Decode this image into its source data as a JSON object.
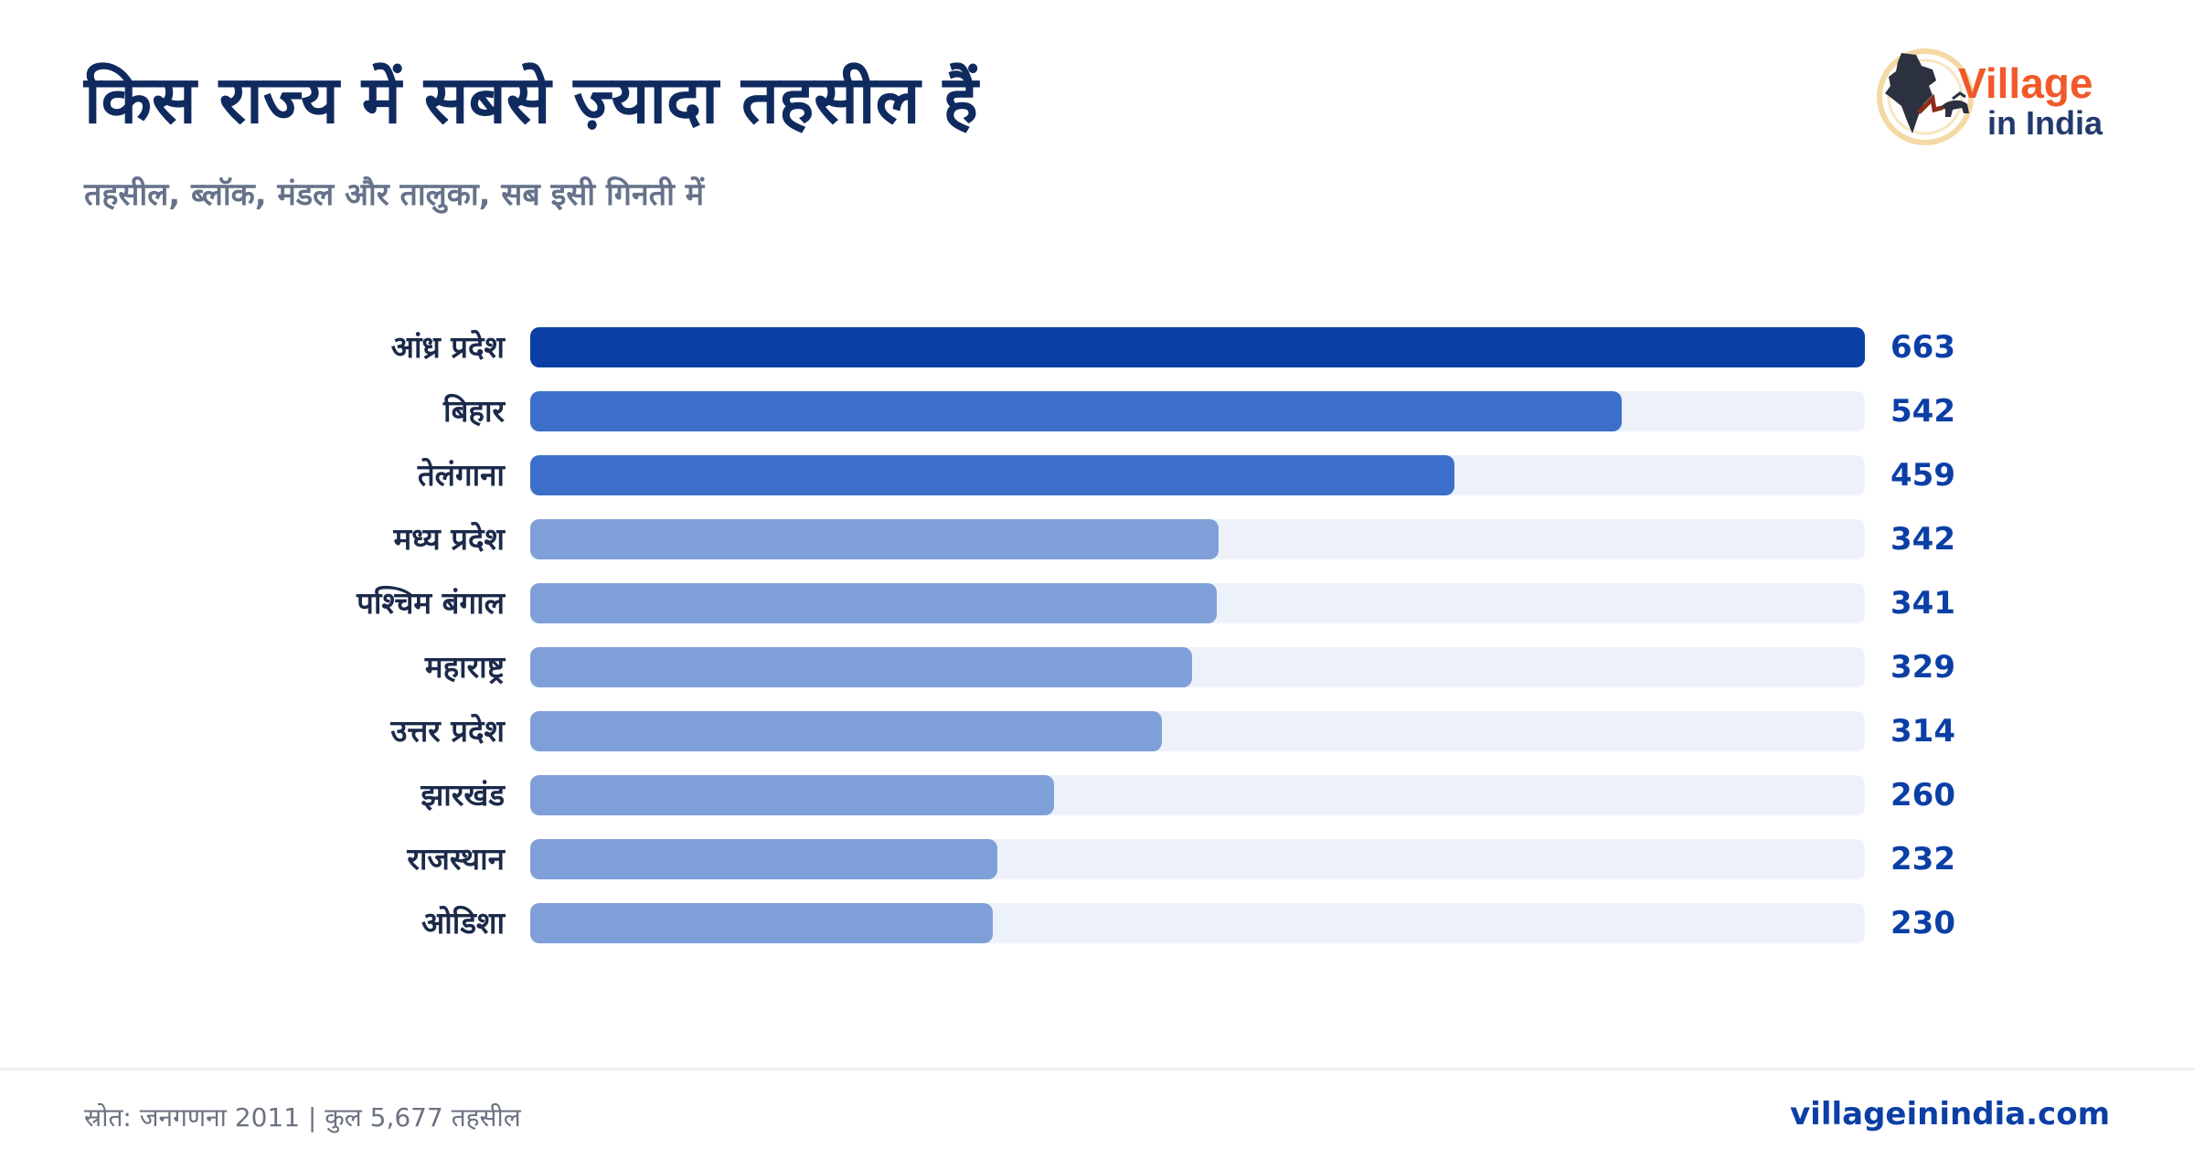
{
  "header": {
    "title": "किस राज्य में सबसे ज़्यादा तहसील हैं",
    "subtitle": "तहसील, ब्लॉक, मंडल और तालुका, सब इसी गिनती में"
  },
  "logo": {
    "line1": "Village",
    "line2": "in India"
  },
  "colors": {
    "title": "#0f2a5e",
    "bar_top": "#0b3fa6",
    "bar_high": "#3b6fca",
    "bar_rest": "#7f9fd8",
    "track": "#edf2fa",
    "value": "#0b3fa6"
  },
  "chart_data": {
    "type": "bar",
    "orientation": "horizontal",
    "title": "किस राज्य में सबसे ज़्यादा तहसील हैं",
    "subtitle": "तहसील, ब्लॉक, मंडल और तालुका, सब इसी गिनती में",
    "categories": [
      "आंध्र प्रदेश",
      "बिहार",
      "तेलंगाना",
      "मध्य प्रदेश",
      "पश्चिम बंगाल",
      "महाराष्ट्र",
      "उत्तर प्रदेश",
      "झारखंड",
      "राजस्थान",
      "ओडिशा"
    ],
    "values": [
      663,
      542,
      459,
      342,
      341,
      329,
      314,
      260,
      232,
      230
    ],
    "value_labels": [
      "663",
      "542",
      "459",
      "342",
      "341",
      "329",
      "314",
      "260",
      "232",
      "230"
    ],
    "xlim": [
      0,
      663
    ],
    "grid": false,
    "legend": "none"
  },
  "footer": {
    "source": "स्रोत: जनगणना 2011 | कुल 5,677 तहसील",
    "site": "villageinindia.com"
  }
}
